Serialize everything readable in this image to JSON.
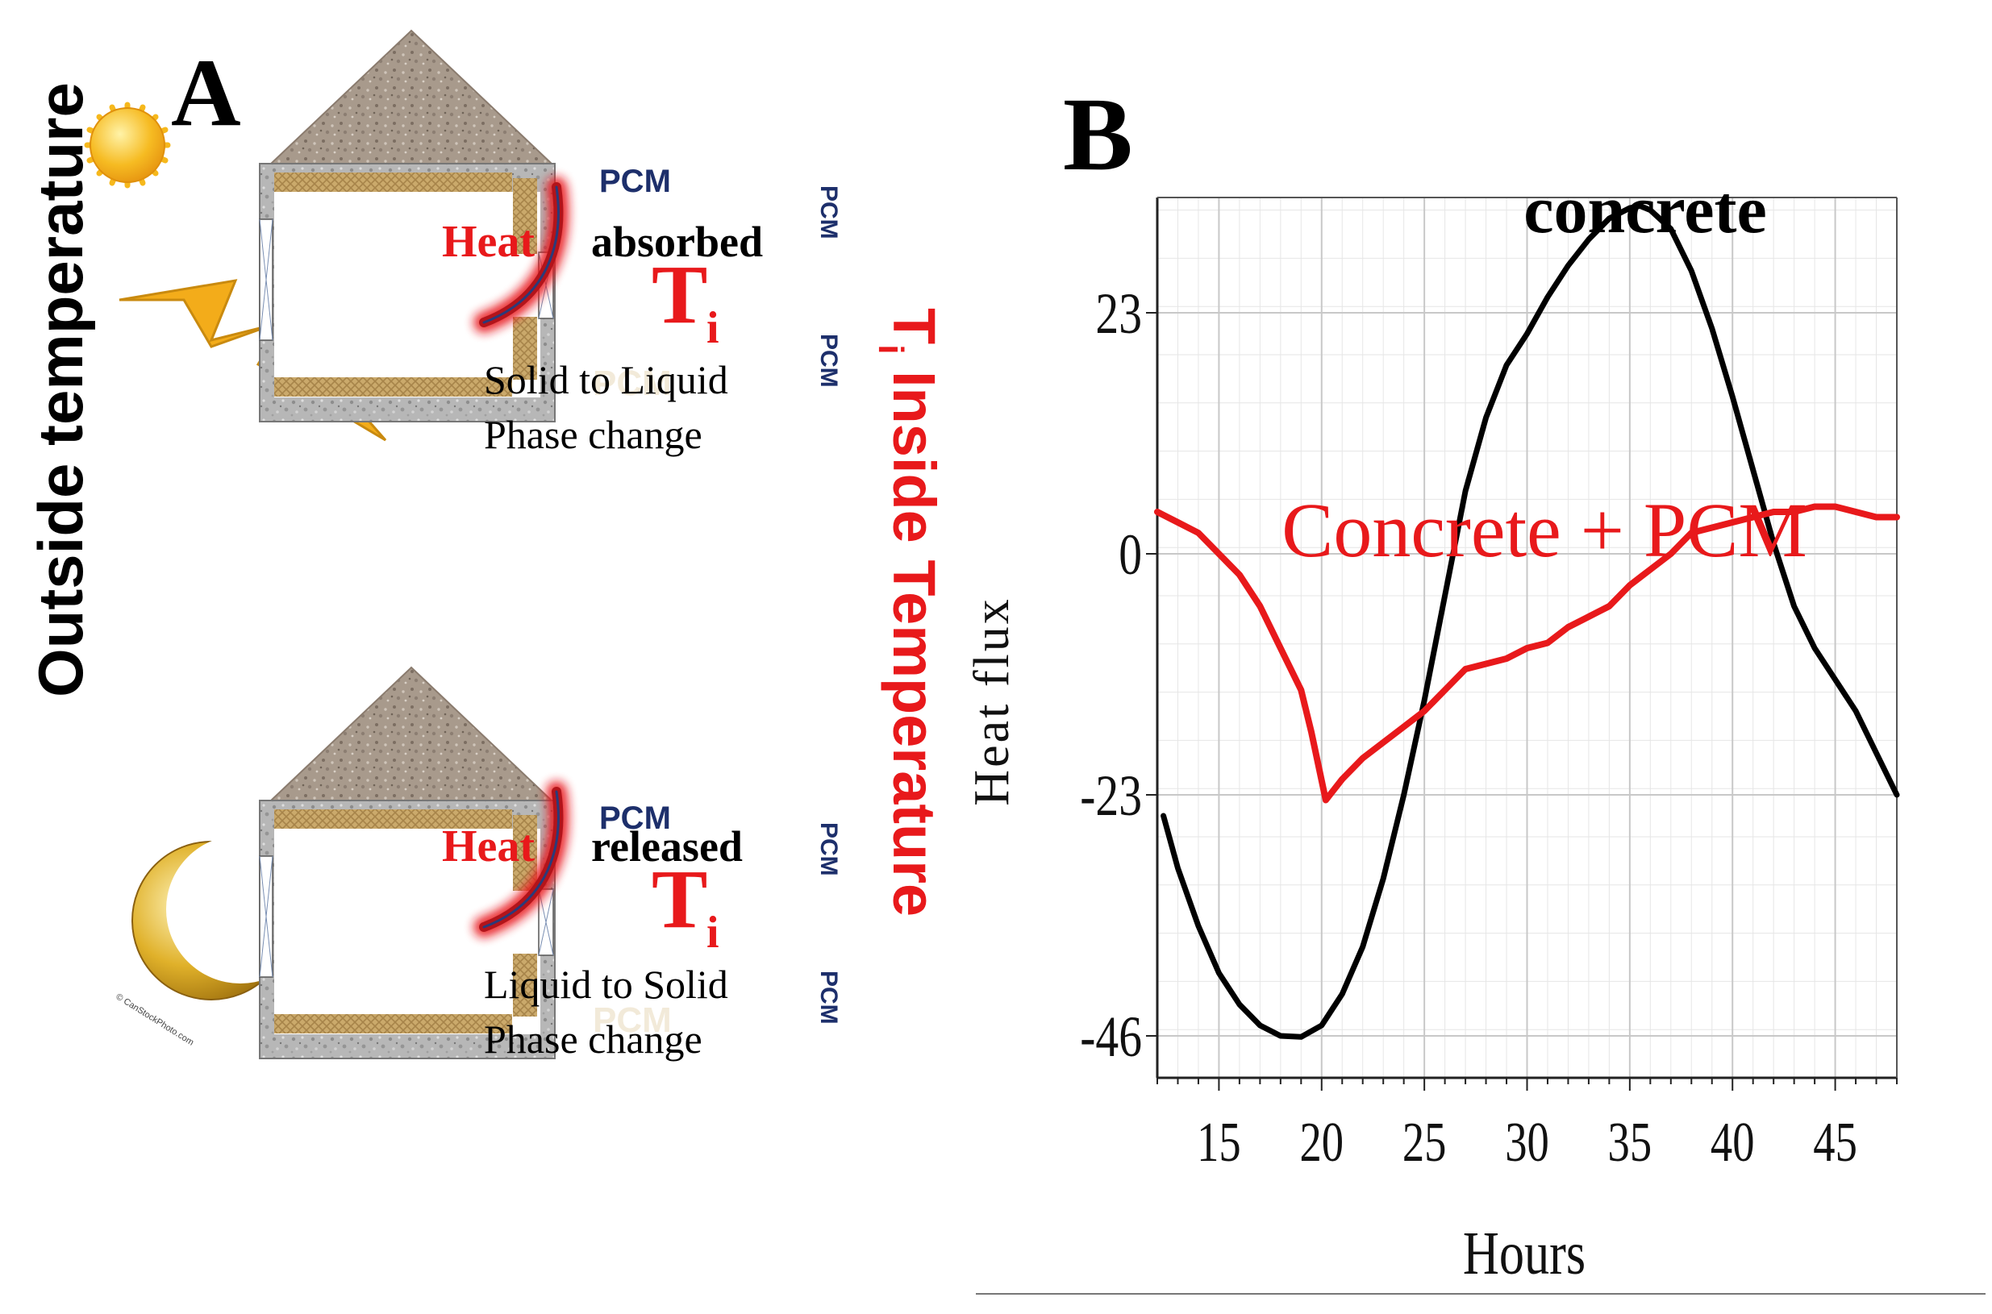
{
  "panel_a": {
    "label": "A",
    "outside_label": "Outside temperature",
    "inside_label_prefix": "T",
    "inside_label_sub": "i",
    "inside_label_rest": " Inside Temperature",
    "day_house": {
      "pcm_top": "PCM",
      "pcm_bottom": "PCM",
      "pcm_side_upper": "PCM",
      "pcm_side_lower": "PCM",
      "heat_word": "Heat",
      "action_word": "absorbed",
      "ti_main": "T",
      "ti_sub": "i",
      "line1": "Solid  to Liquid",
      "line2": "Phase change"
    },
    "night_house": {
      "pcm_top": "PCM",
      "pcm_bottom": "PCM",
      "pcm_side_upper": "PCM",
      "pcm_side_lower": "PCM",
      "heat_word": "Heat",
      "action_word": "released",
      "ti_main": "T",
      "ti_sub": "i",
      "line1": "Liquid  to Solid",
      "line2": "Phase change"
    },
    "moon_credit": "© CanStockPhoto.com"
  },
  "colors": {
    "red": "#e8191b",
    "black": "#000000",
    "navy": "#1d2f6b",
    "pcm_tan": "#c9a96a",
    "wall_gray": "#b4b4b4",
    "roof_brown": "#a8998a",
    "sun": "#f6b81c",
    "bolt": "#f3ac1a",
    "moon": "#d9a920",
    "grid": "#c8c8c8"
  },
  "icons": [
    "sun-icon",
    "lightning-bolt-icon",
    "crescent-moon-icon"
  ],
  "panel_b": {
    "label": "B",
    "chart_data": {
      "type": "line",
      "xlabel": "Hours",
      "ylabel": "Heat flux",
      "xlim": [
        12,
        48
      ],
      "ylim": [
        -50,
        34
      ],
      "x_ticks": [
        15,
        20,
        25,
        30,
        35,
        40,
        45
      ],
      "y_ticks": [
        23,
        0,
        -23,
        -46
      ],
      "grid": true,
      "series": [
        {
          "name": "concrete",
          "color": "#000000",
          "points": [
            [
              12.3,
              -25
            ],
            [
              13,
              -30
            ],
            [
              14,
              -35.5
            ],
            [
              15,
              -40
            ],
            [
              16,
              -43
            ],
            [
              17,
              -45
            ],
            [
              18,
              -46
            ],
            [
              19,
              -46.1
            ],
            [
              20,
              -45
            ],
            [
              21,
              -42
            ],
            [
              22,
              -37.5
            ],
            [
              23,
              -31
            ],
            [
              24,
              -23
            ],
            [
              25,
              -14
            ],
            [
              26,
              -4
            ],
            [
              27,
              6
            ],
            [
              28,
              13
            ],
            [
              29,
              18
            ],
            [
              30,
              21
            ],
            [
              31,
              24.5
            ],
            [
              32,
              27.5
            ],
            [
              33,
              30
            ],
            [
              34,
              32
            ],
            [
              35,
              33
            ],
            [
              35.5,
              33.2
            ],
            [
              36,
              32.8
            ],
            [
              37,
              31
            ],
            [
              38,
              27
            ],
            [
              39,
              21.5
            ],
            [
              40,
              15
            ],
            [
              41,
              8
            ],
            [
              42,
              1
            ],
            [
              43,
              -5
            ],
            [
              44,
              -9
            ],
            [
              45,
              -12
            ],
            [
              46,
              -15
            ],
            [
              47,
              -19
            ],
            [
              48,
              -23
            ]
          ]
        },
        {
          "name": "Concrete + PCM",
          "color": "#e8191b",
          "points": [
            [
              12,
              4
            ],
            [
              13,
              3
            ],
            [
              14,
              2
            ],
            [
              15,
              0
            ],
            [
              16,
              -2
            ],
            [
              17,
              -5
            ],
            [
              18,
              -9
            ],
            [
              19,
              -13
            ],
            [
              19.5,
              -17
            ],
            [
              20.2,
              -23.5
            ],
            [
              21,
              -21.5
            ],
            [
              22,
              -19.5
            ],
            [
              23,
              -18
            ],
            [
              24,
              -16.5
            ],
            [
              25,
              -15
            ],
            [
              26,
              -13
            ],
            [
              27,
              -11
            ],
            [
              28,
              -10.5
            ],
            [
              29,
              -10
            ],
            [
              30,
              -9
            ],
            [
              31,
              -8.5
            ],
            [
              32,
              -7
            ],
            [
              33,
              -6
            ],
            [
              34,
              -5
            ],
            [
              35,
              -3
            ],
            [
              36,
              -1.5
            ],
            [
              37,
              0
            ],
            [
              38,
              2
            ],
            [
              39,
              2.5
            ],
            [
              40,
              3
            ],
            [
              41,
              3.5
            ],
            [
              42,
              4
            ],
            [
              43,
              4
            ],
            [
              44,
              4.5
            ],
            [
              45,
              4.5
            ],
            [
              46,
              4
            ],
            [
              47,
              3.5
            ],
            [
              48,
              3.5
            ]
          ]
        }
      ]
    }
  }
}
